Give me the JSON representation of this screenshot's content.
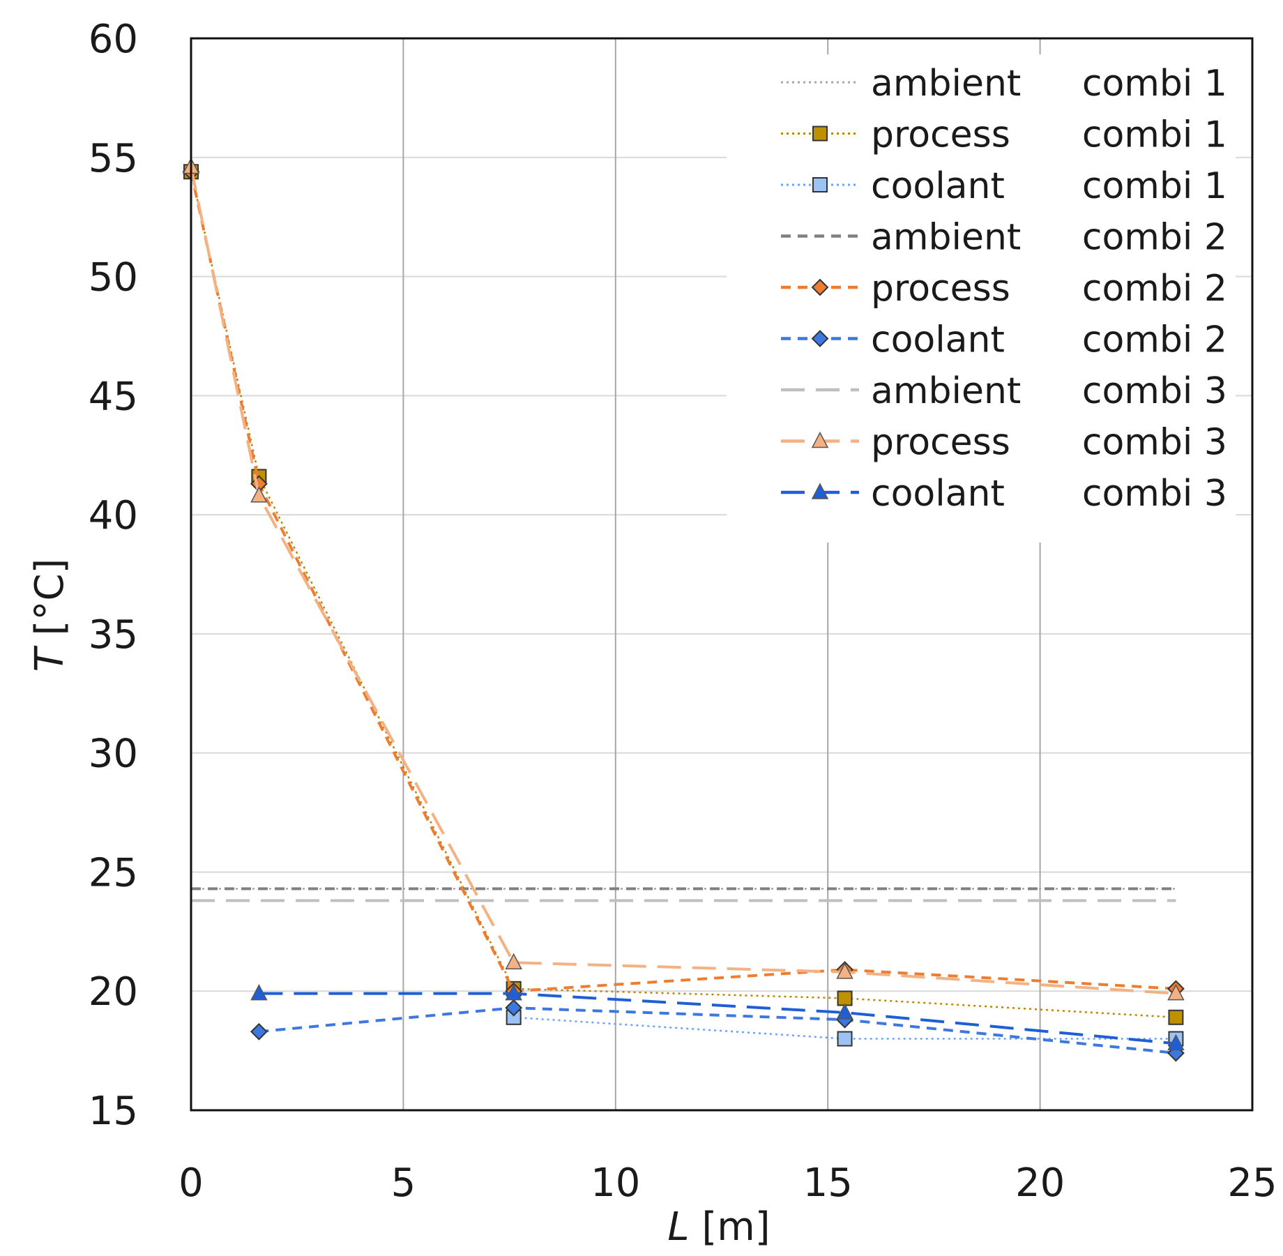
{
  "chart_data": {
    "type": "line",
    "title": "",
    "xlabel_var": "L",
    "xlabel_unit": " [m]",
    "ylabel_var": "T",
    "ylabel_unit": " [°C]",
    "xlim": [
      0,
      25
    ],
    "ylim": [
      15,
      60
    ],
    "xticks": [
      0,
      5,
      10,
      15,
      20,
      25
    ],
    "yticks": [
      15,
      20,
      25,
      30,
      35,
      40,
      45,
      50,
      55,
      60
    ],
    "xtick_labels": [
      "0",
      "5",
      "10",
      "15",
      "20",
      "25"
    ],
    "ytick_labels": [
      "15",
      "20",
      "25",
      "30",
      "35",
      "40",
      "45",
      "50",
      "55",
      "60"
    ],
    "grid": true,
    "legend_position": "top-right",
    "series": [
      {
        "name": "ambient",
        "group": "combi 1",
        "color": "#a6a6a6",
        "dash": "dotted",
        "marker": "none",
        "x": [
          0,
          23.2
        ],
        "y": [
          24.3,
          24.3
        ]
      },
      {
        "name": "process",
        "group": "combi 1",
        "color": "#b8860b",
        "dash": "dotted",
        "marker": "square",
        "marker_fill": "#bf9000",
        "x": [
          0,
          1.6,
          7.6,
          15.4,
          23.2
        ],
        "y": [
          54.4,
          41.6,
          20.1,
          19.7,
          18.9
        ]
      },
      {
        "name": "coolant",
        "group": "combi 1",
        "color": "#6fa0f0",
        "dash": "dotted",
        "marker": "square",
        "marker_fill": "#9dc3f5",
        "x": [
          7.6,
          15.4,
          23.2
        ],
        "y": [
          18.9,
          18.0,
          18.0
        ]
      },
      {
        "name": "ambient",
        "group": "combi 2",
        "color": "#808080",
        "dash": "dashed",
        "marker": "none",
        "x": [
          0,
          23.2
        ],
        "y": [
          24.3,
          24.3
        ]
      },
      {
        "name": "process",
        "group": "combi 2",
        "color": "#ed7d31",
        "dash": "dashed",
        "marker": "diamond",
        "marker_fill": "#ed7d31",
        "x": [
          0,
          1.6,
          7.6,
          15.4,
          23.2
        ],
        "y": [
          54.4,
          41.3,
          20.0,
          20.9,
          20.1
        ]
      },
      {
        "name": "coolant",
        "group": "combi 2",
        "color": "#3c78e0",
        "dash": "dashed",
        "marker": "diamond",
        "marker_fill": "#3c78e0",
        "x": [
          1.6,
          7.6,
          15.4,
          23.2
        ],
        "y": [
          18.3,
          19.3,
          18.8,
          17.4
        ]
      },
      {
        "name": "ambient",
        "group": "combi 3",
        "color": "#bfbfbf",
        "dash": "longdash",
        "marker": "none",
        "x": [
          0,
          23.2
        ],
        "y": [
          23.8,
          23.8
        ]
      },
      {
        "name": "process",
        "group": "combi 3",
        "color": "#f4b183",
        "dash": "longdash",
        "marker": "triangle",
        "marker_fill": "#f4b183",
        "x": [
          0,
          1.6,
          7.6,
          15.4,
          23.2
        ],
        "y": [
          54.6,
          40.8,
          21.2,
          20.8,
          19.9
        ]
      },
      {
        "name": "coolant",
        "group": "combi 3",
        "color": "#1f5fd6",
        "dash": "longdash",
        "marker": "triangle",
        "marker_fill": "#1f5fd6",
        "x": [
          1.6,
          7.6,
          15.4,
          23.2
        ],
        "y": [
          19.9,
          19.9,
          19.1,
          17.8
        ]
      }
    ]
  }
}
